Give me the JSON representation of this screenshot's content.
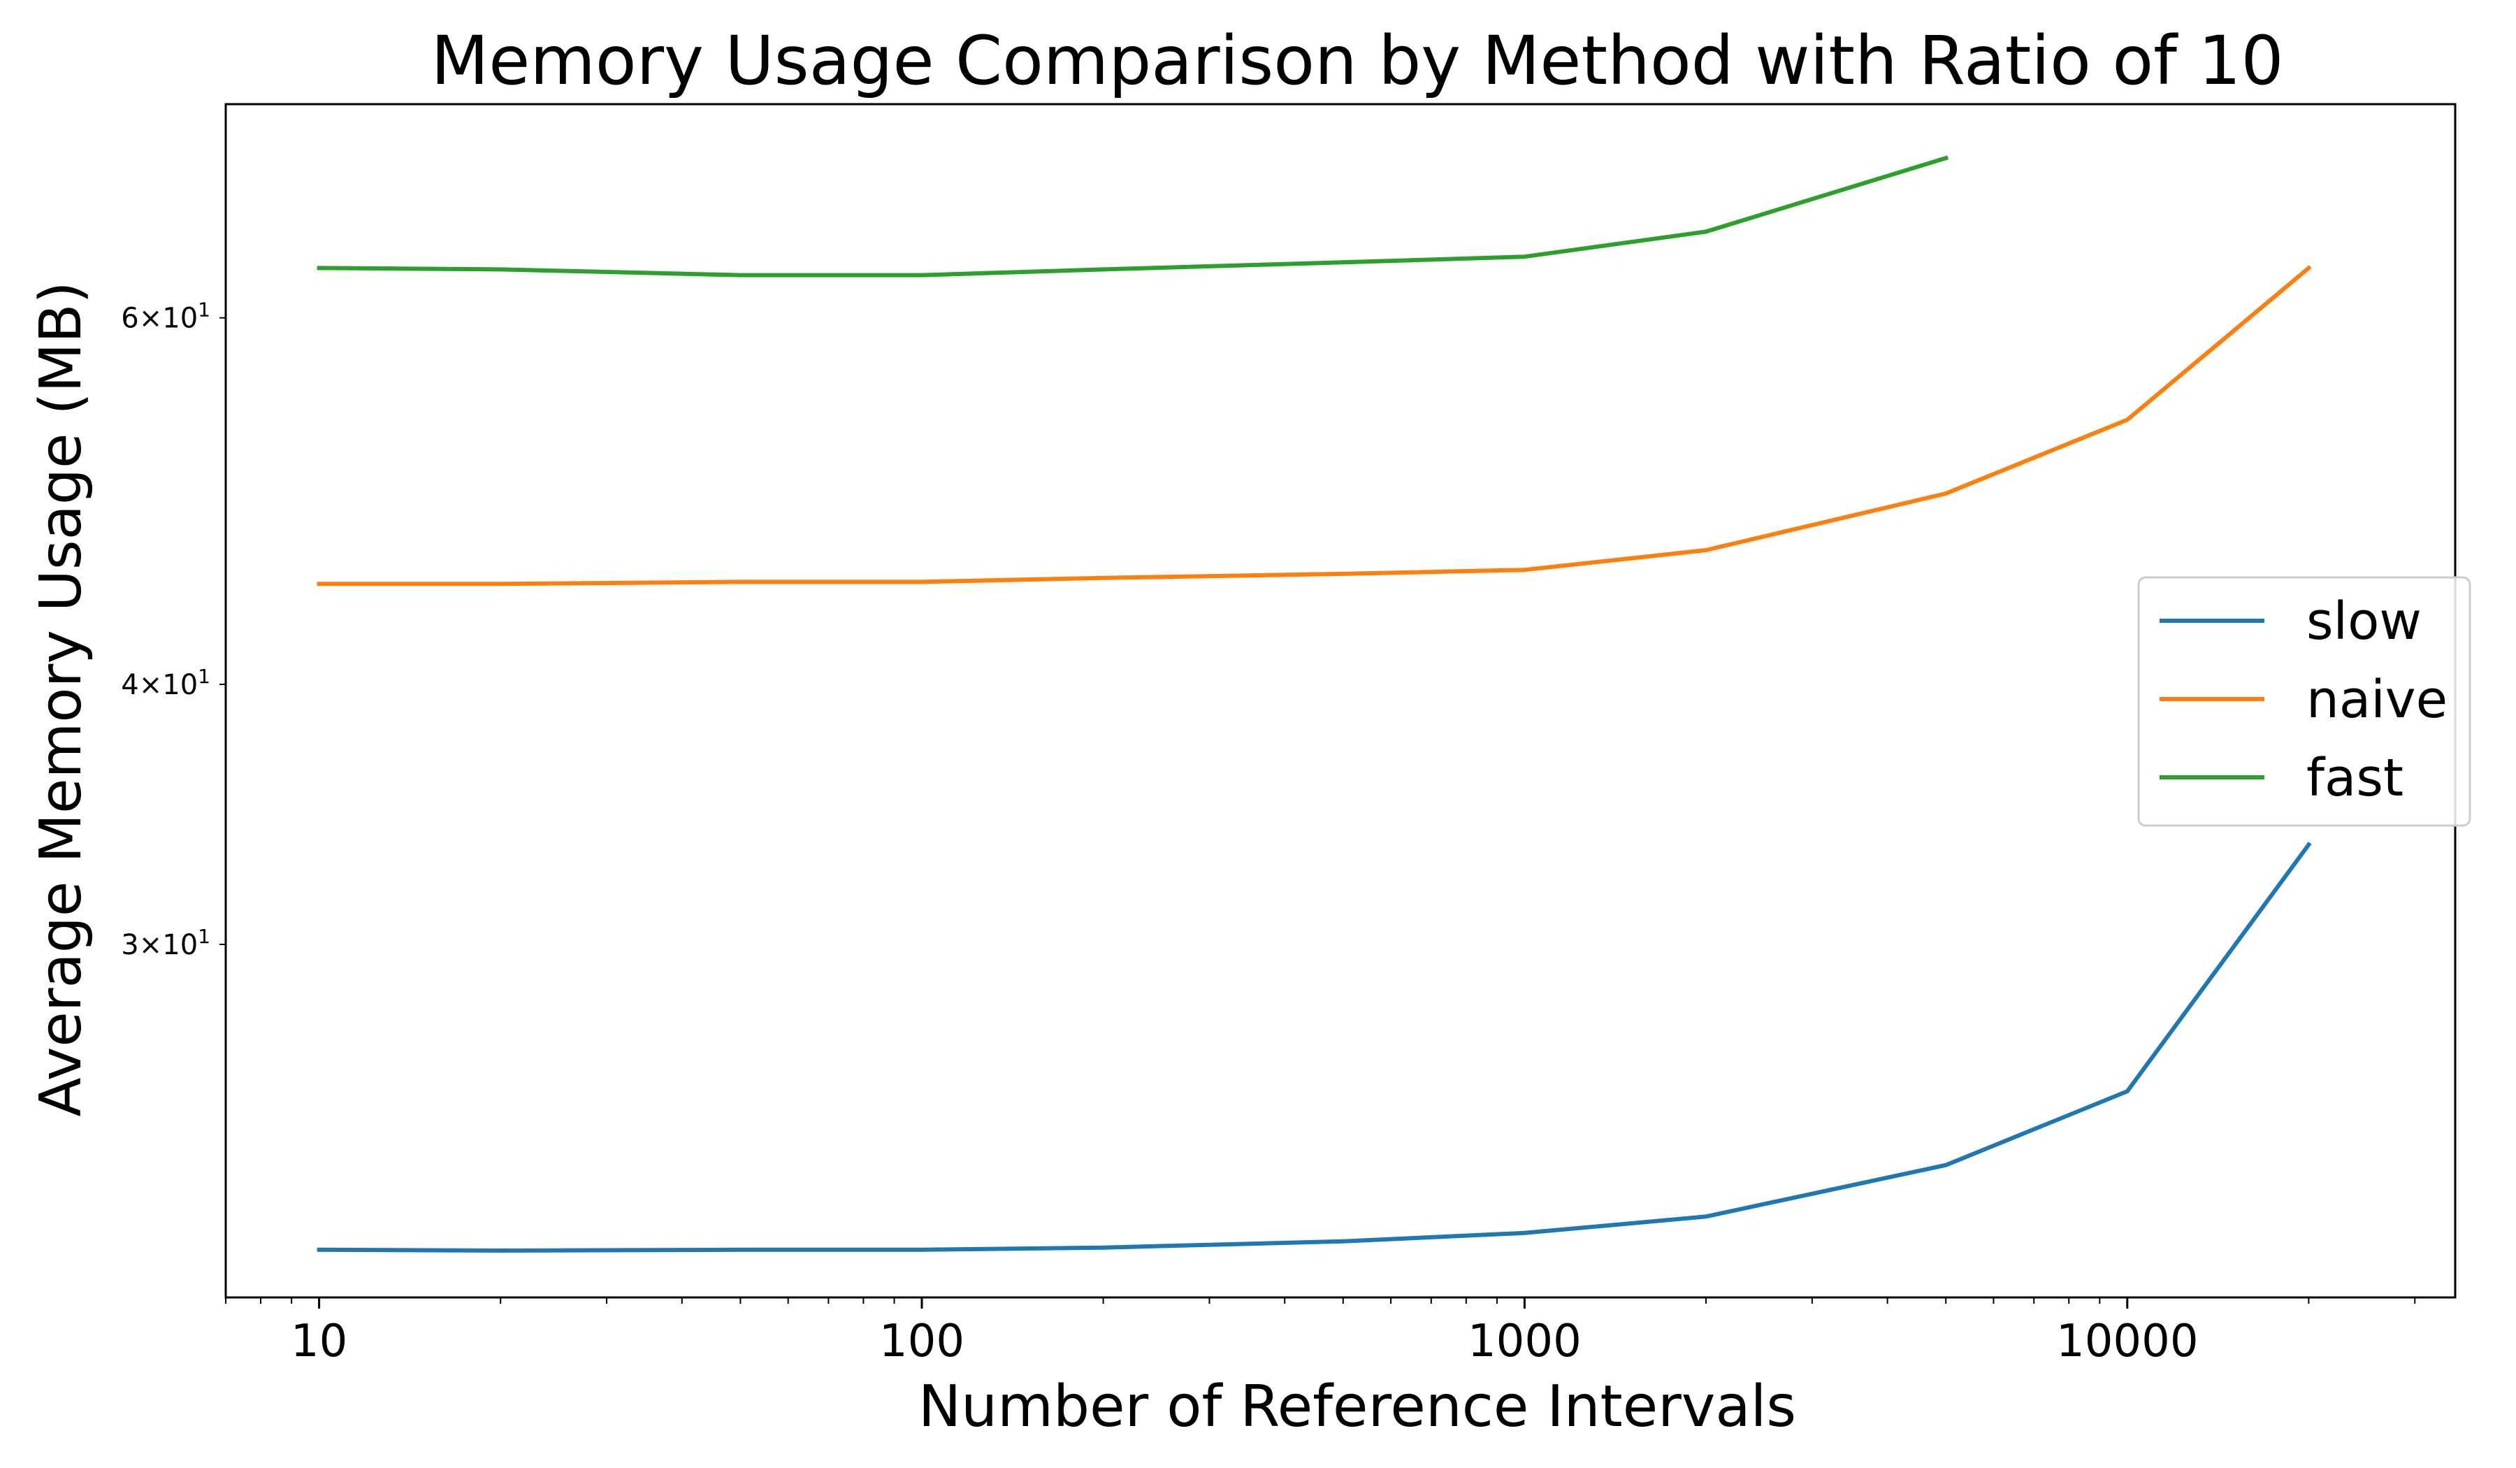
{
  "chart_data": {
    "type": "line",
    "title": "Memory Usage Comparison by Method with Ratio of 10",
    "xlabel": "Number of Reference Intervals",
    "ylabel": "Average Memory Usage (MB)",
    "xscale": "log",
    "yscale": "log",
    "xlim": [
      7,
      35000
    ],
    "ylim": [
      20.3,
      76
    ],
    "xticks": [
      10,
      100,
      1000,
      10000
    ],
    "xtick_labels": [
      "10",
      "100",
      "1000",
      "10000"
    ],
    "yticks": [
      30,
      40,
      60
    ],
    "ytick_labels": [
      {
        "base": "3",
        "mult": "10",
        "exp": "1"
      },
      {
        "base": "4",
        "mult": "10",
        "exp": "1"
      },
      {
        "base": "6",
        "mult": "10",
        "exp": "1"
      }
    ],
    "grid": false,
    "legend_position": "center-right",
    "series": [
      {
        "name": "slow",
        "color": "#1f77b4",
        "x": [
          10,
          20,
          50,
          100,
          200,
          500,
          1000,
          2000,
          5000,
          10000,
          20000
        ],
        "y": [
          21.4,
          21.38,
          21.4,
          21.4,
          21.45,
          21.6,
          21.8,
          22.2,
          23.5,
          25.5,
          33.5
        ]
      },
      {
        "name": "naive",
        "color": "#ff7f0e",
        "x": [
          10,
          20,
          50,
          100,
          200,
          500,
          1000,
          2000,
          5000,
          10000,
          20000
        ],
        "y": [
          44.7,
          44.7,
          44.8,
          44.8,
          45.0,
          45.2,
          45.4,
          46.4,
          49.4,
          53.6,
          63.4
        ]
      },
      {
        "name": "fast",
        "color": "#2ca02c",
        "x": [
          10,
          20,
          50,
          100,
          200,
          500,
          1000,
          2000,
          5000
        ],
        "y": [
          63.4,
          63.3,
          62.9,
          62.9,
          63.3,
          63.8,
          64.2,
          66.0,
          71.6
        ]
      }
    ]
  }
}
